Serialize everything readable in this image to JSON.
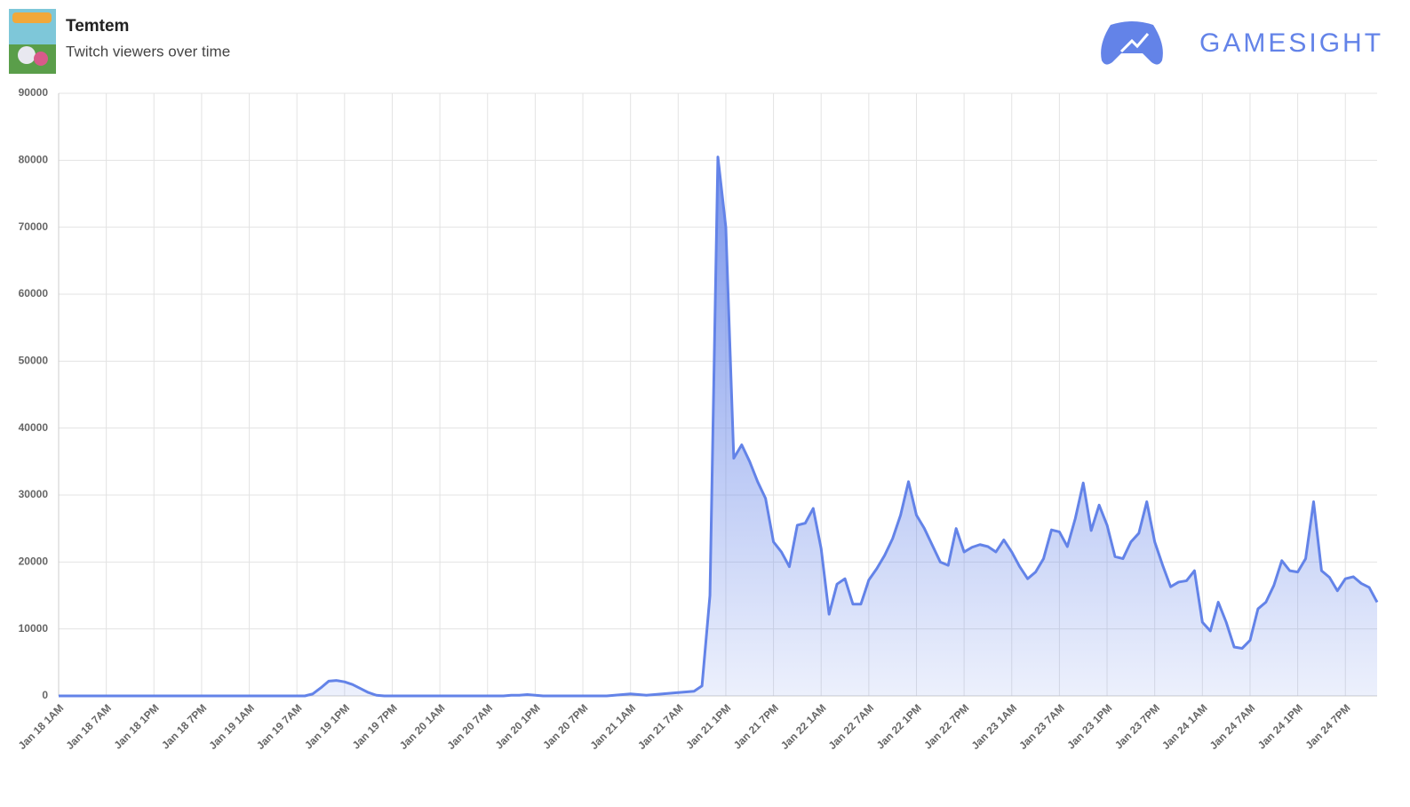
{
  "chart_data": {
    "type": "area",
    "title": "Temtem",
    "subtitle": "Twitch viewers over time",
    "logo_text": "GAMESIGHT",
    "color": "#6383e8",
    "grid": true,
    "ylim": [
      0,
      90000
    ],
    "yticks": [
      0,
      10000,
      20000,
      30000,
      40000,
      50000,
      60000,
      70000,
      80000,
      90000
    ],
    "categories": [
      "Jan 18 1AM",
      null,
      null,
      null,
      null,
      null,
      "Jan 18 7AM",
      null,
      null,
      null,
      null,
      null,
      "Jan 18 1PM",
      null,
      null,
      null,
      null,
      null,
      "Jan 18 7PM",
      null,
      null,
      null,
      null,
      null,
      "Jan 19 1AM",
      null,
      null,
      null,
      null,
      null,
      "Jan 19 7AM",
      null,
      null,
      null,
      null,
      null,
      "Jan 19 1PM",
      null,
      null,
      null,
      null,
      null,
      "Jan 19 7PM",
      null,
      null,
      null,
      null,
      null,
      "Jan 20 1AM",
      null,
      null,
      null,
      null,
      null,
      "Jan 20 7AM",
      null,
      null,
      null,
      null,
      null,
      "Jan 20 1PM",
      null,
      null,
      null,
      null,
      null,
      "Jan 20 7PM",
      null,
      null,
      null,
      null,
      null,
      "Jan 21 1AM",
      null,
      null,
      null,
      null,
      null,
      "Jan 21 7AM",
      null,
      null,
      null,
      null,
      null,
      "Jan 21 1PM",
      null,
      null,
      null,
      null,
      null,
      "Jan 21 7PM",
      null,
      null,
      null,
      null,
      null,
      "Jan 22 1AM",
      null,
      null,
      null,
      null,
      null,
      "Jan 22 7AM",
      null,
      null,
      null,
      null,
      null,
      "Jan 22 1PM",
      null,
      null,
      null,
      null,
      null,
      "Jan 22 7PM",
      null,
      null,
      null,
      null,
      null,
      "Jan 23 1AM",
      null,
      null,
      null,
      null,
      null,
      "Jan 23 7AM",
      null,
      null,
      null,
      null,
      null,
      "Jan 23 1PM",
      null,
      null,
      null,
      null,
      null,
      "Jan 23 7PM",
      null,
      null,
      null,
      null,
      null,
      "Jan 24 1AM",
      null,
      null,
      null,
      null,
      null,
      "Jan 24 7AM",
      null,
      null,
      null,
      null,
      null,
      "Jan 24 1PM",
      null,
      null,
      null,
      null,
      null,
      "Jan 24 7PM",
      null,
      null,
      null,
      null
    ],
    "values": [
      0,
      0,
      0,
      0,
      0,
      0,
      0,
      0,
      0,
      0,
      0,
      0,
      0,
      0,
      0,
      0,
      0,
      0,
      0,
      0,
      0,
      0,
      0,
      0,
      0,
      0,
      0,
      0,
      0,
      0,
      0,
      0,
      300,
      1200,
      2200,
      2300,
      2100,
      1700,
      1100,
      500,
      100,
      0,
      0,
      0,
      0,
      0,
      0,
      0,
      0,
      0,
      0,
      0,
      0,
      0,
      0,
      0,
      0,
      100,
      100,
      200,
      100,
      0,
      0,
      0,
      0,
      0,
      0,
      0,
      0,
      0,
      100,
      200,
      300,
      200,
      100,
      200,
      300,
      400,
      500,
      600,
      700,
      1500,
      15000,
      80500,
      70000,
      35500,
      37500,
      35000,
      32000,
      29500,
      23000,
      21500,
      19300,
      25500,
      25800,
      28000,
      22000,
      12200,
      16700,
      17500,
      13700,
      13700,
      17300,
      19000,
      21000,
      23500,
      27000,
      32000,
      27000,
      25000,
      22500,
      20000,
      19500,
      25000,
      21500,
      22200,
      22600,
      22300,
      21500,
      23300,
      21500,
      19300,
      17500,
      18500,
      20500,
      24800,
      24500,
      22300,
      26500,
      31800,
      24700,
      28500,
      25500,
      20800,
      20500,
      23000,
      24300,
      29000,
      23000,
      19500,
      16300,
      17000,
      17200,
      18700,
      11000,
      9700,
      14000,
      11000,
      7300,
      7100,
      8300,
      13000,
      14000,
      16500,
      20200,
      18700,
      18500,
      20500,
      29000,
      18700,
      17700,
      15700,
      17500,
      17800,
      16800,
      16200,
      14000
    ]
  }
}
